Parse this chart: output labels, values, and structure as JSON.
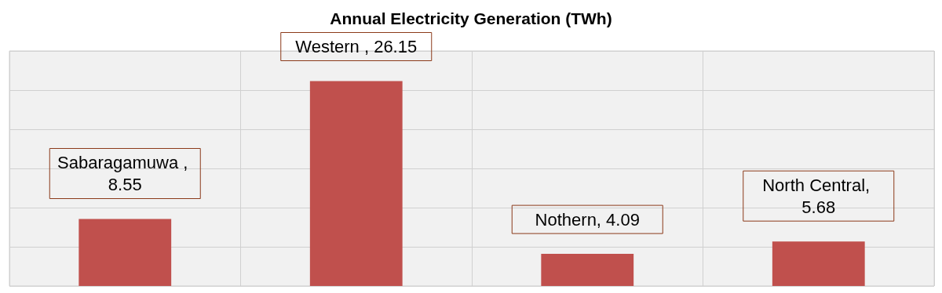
{
  "chart_data": {
    "type": "bar",
    "title": "Annual Electricity Generation (TWh)",
    "categories": [
      null,
      null,
      null,
      null
    ],
    "values": [
      8.55,
      26.15,
      4.09,
      5.68
    ],
    "value_labels": [
      "Sabaragamuwa , 8.55",
      "Western , 26.15",
      "Nothern, 4.09",
      "North Central, 5.68"
    ],
    "color": "#c0504d",
    "ylim": [
      0,
      30
    ],
    "yticks": [
      {
        "value": 0,
        "label": null
      },
      {
        "value": 5,
        "label": null
      },
      {
        "value": 10,
        "label": null
      },
      {
        "value": 15,
        "label": null
      },
      {
        "value": 20,
        "label": null
      },
      {
        "value": 25,
        "label": null
      },
      {
        "value": 30,
        "label": null
      }
    ],
    "grid": true
  }
}
